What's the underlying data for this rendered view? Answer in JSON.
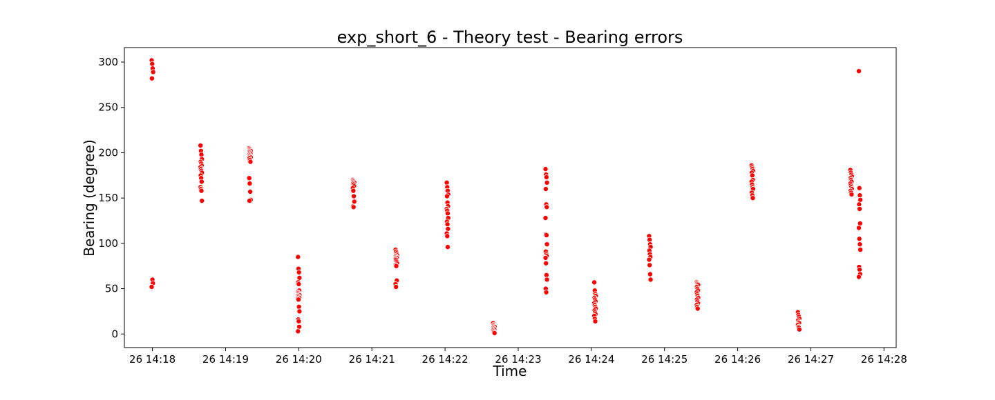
{
  "chart_data": {
    "type": "scatter",
    "title": "exp_short_6 - Theory test - Bearing errors",
    "xlabel": "Time",
    "ylabel": "Bearing (degree)",
    "xticks": [
      "26 14:18",
      "26 14:19",
      "26 14:20",
      "26 14:21",
      "26 14:22",
      "26 14:23",
      "26 14:24",
      "26 14:25",
      "26 14:26",
      "26 14:27",
      "26 14:28"
    ],
    "yticks": [
      "0",
      "50",
      "100",
      "150",
      "200",
      "250",
      "300"
    ],
    "xlim": [
      "26 14:17:37",
      "26 14:28:10"
    ],
    "ylim": [
      -15,
      316
    ],
    "grid": false,
    "point_color": "#ff0000",
    "series": [
      {
        "clusters": [
          {
            "t": "26 14:18:00",
            "y": [
              302,
              298,
              293,
              289,
              282,
              60,
              56,
              52
            ]
          },
          {
            "t": "26 14:18:40",
            "y": [
              208,
              202,
              198,
              193,
              190,
              188,
              186,
              184,
              182,
              180,
              178,
              175,
              172,
              168,
              162,
              160,
              158,
              147
            ]
          },
          {
            "t": "26 14:19:20",
            "y": [
              205,
              204,
              203,
              202,
              201,
              200,
              199,
              198,
              197,
              196,
              195,
              194,
              192,
              190,
              172,
              166,
              157,
              148,
              147
            ]
          },
          {
            "t": "26 14:20:00",
            "y": [
              85,
              72,
              68,
              62,
              57,
              55,
              48,
              46,
              45,
              44,
              43,
              42,
              41,
              40,
              39,
              38,
              30,
              25,
              16,
              14,
              8,
              3
            ]
          },
          {
            "t": "26 14:20:45",
            "y": [
              170,
              169,
              168,
              167,
              166,
              165,
              163,
              161,
              158,
              152,
              146,
              141,
              140
            ]
          },
          {
            "t": "26 14:21:20",
            "y": [
              93,
              91,
              89,
              87,
              86,
              85,
              84,
              83,
              82,
              80,
              78,
              76,
              75,
              59,
              55,
              52
            ]
          },
          {
            "t": "26 14:22:02",
            "y": [
              167,
              162,
              158,
              154,
              152,
              145,
              141,
              138,
              136,
              133,
              128,
              124,
              121,
              116,
              111,
              108,
              96
            ]
          },
          {
            "t": "26 14:22:40",
            "y": [
              12,
              10,
              9,
              8,
              7,
              6,
              5,
              4,
              3,
              2,
              1
            ]
          },
          {
            "t": "26 14:23:23",
            "y": [
              182,
              176,
              173,
              167,
              160,
              143,
              140,
              128,
              110,
              109,
              99,
              91,
              88,
              86,
              84,
              78,
              65,
              60,
              50,
              46
            ]
          },
          {
            "t": "26 14:24:03",
            "y": [
              57,
              48,
              44,
              42,
              40,
              38,
              36,
              34,
              32,
              30,
              28,
              26,
              24,
              22,
              20,
              17,
              14
            ]
          },
          {
            "t": "26 14:24:48",
            "y": [
              108,
              104,
              99,
              96,
              92,
              88,
              85,
              82,
              76,
              66,
              60
            ]
          },
          {
            "t": "26 14:25:27",
            "y": [
              57,
              56,
              55,
              54,
              52,
              50,
              48,
              46,
              44,
              42,
              40,
              38,
              36,
              34,
              32,
              30,
              28
            ]
          },
          {
            "t": "26 14:26:12",
            "y": [
              186,
              184,
              182,
              180,
              178,
              175,
              170,
              168,
              165,
              162,
              160,
              156,
              153,
              150
            ]
          },
          {
            "t": "26 14:26:50",
            "y": [
              24,
              21,
              19,
              17,
              15,
              13,
              12,
              10,
              8,
              7,
              5
            ]
          },
          {
            "t": "26 14:27:33",
            "y": [
              181,
              178,
              176,
              174,
              172,
              170,
              168,
              166,
              164,
              162,
              160,
              158,
              156,
              154
            ]
          },
          {
            "t": "26 14:27:40",
            "y": [
              290,
              161,
              153,
              148,
              143,
              138,
              122,
              117,
              105,
              99,
              93,
              74,
              71,
              66,
              63
            ]
          }
        ]
      }
    ]
  }
}
